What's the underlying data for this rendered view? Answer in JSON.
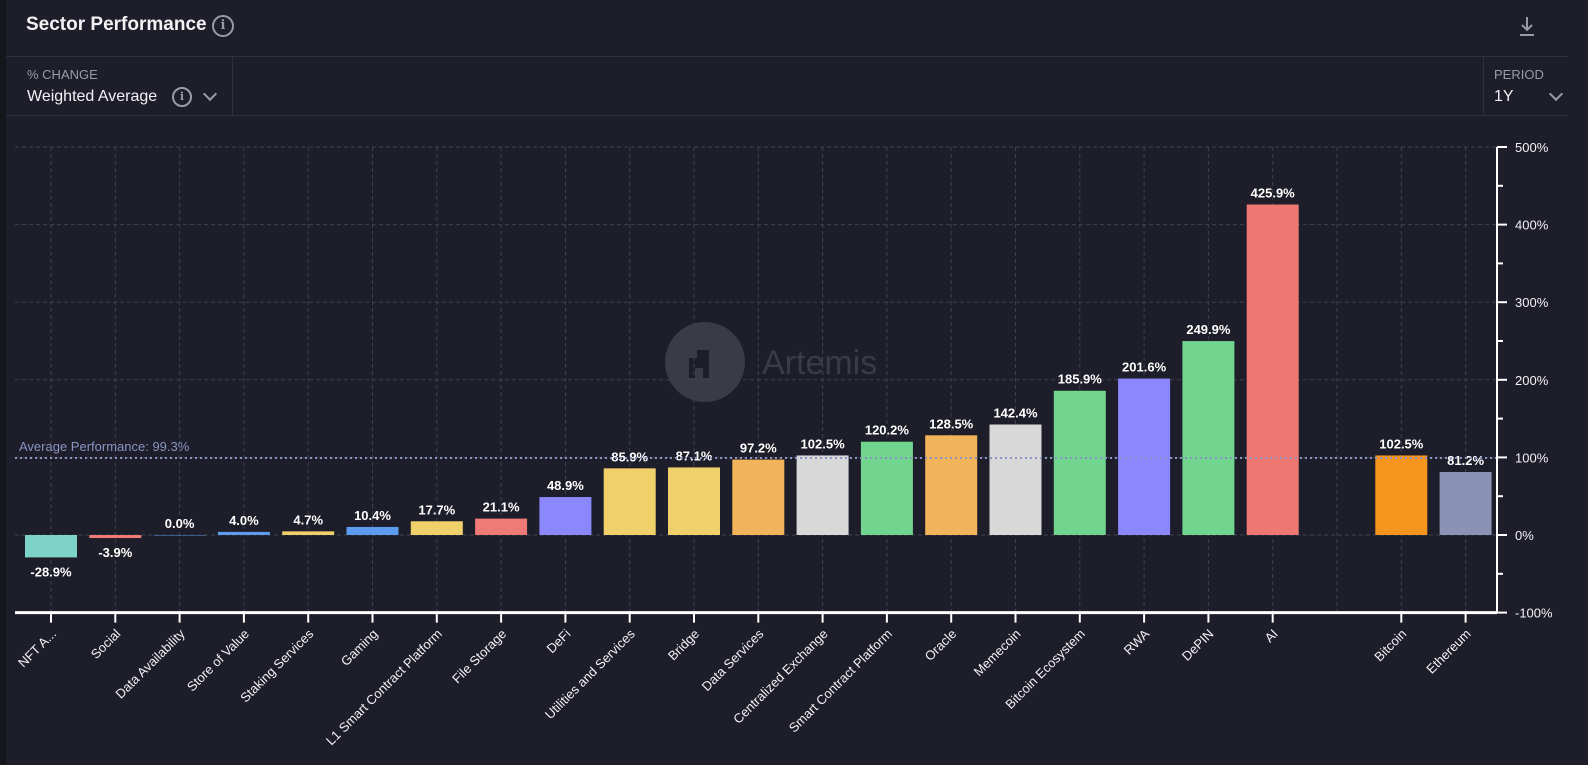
{
  "header": {
    "title": "Sector Performance",
    "info_icon": "info-icon",
    "download_icon": "download-icon"
  },
  "controls": {
    "change": {
      "label": "% CHANGE",
      "value": "Weighted Average"
    },
    "period": {
      "label": "PERIOD",
      "value": "1Y"
    }
  },
  "watermark": "Artemis",
  "chart_data": {
    "type": "bar",
    "title": "",
    "xlabel": "",
    "ylabel": "",
    "ylim": [
      -100,
      500
    ],
    "yticks": [
      "500%",
      "400%",
      "300%",
      "200%",
      "100%",
      "0%",
      "-100%"
    ],
    "ytick_values": [
      500,
      400,
      300,
      200,
      100,
      0,
      -100
    ],
    "grid": true,
    "average_line": {
      "label": "Average Performance: 99.3%",
      "value": 99.3,
      "color": "#8a93c4"
    },
    "categories": [
      "NFT A...",
      "Social",
      "Data Availability",
      "Store of Value",
      "Staking Services",
      "Gaming",
      "L1 Smart Contract Platform",
      "File Storage",
      "DeFi",
      "Utilities and Services",
      "Bridge",
      "Data Services",
      "Centralized Exchange",
      "Smart Contract Platform",
      "Oracle",
      "Memecoin",
      "Bitcoin Ecosystem",
      "RWA",
      "DePIN",
      "AI",
      "",
      "Bitcoin",
      "Ethereum"
    ],
    "values": [
      -28.9,
      -3.9,
      0.0,
      4.0,
      4.7,
      10.4,
      17.7,
      21.1,
      48.9,
      85.9,
      87.1,
      97.2,
      102.5,
      120.2,
      128.5,
      142.4,
      185.9,
      201.6,
      249.9,
      425.9,
      null,
      102.5,
      81.2
    ],
    "labels": [
      "-28.9%",
      "-3.9%",
      "0.0%",
      "4.0%",
      "4.7%",
      "10.4%",
      "17.7%",
      "21.1%",
      "48.9%",
      "85.9%",
      "87.1%",
      "97.2%",
      "102.5%",
      "120.2%",
      "128.5%",
      "142.4%",
      "185.9%",
      "201.6%",
      "249.9%",
      "425.9%",
      "",
      "102.5%",
      "81.2%"
    ],
    "colors": [
      "#7dd3c8",
      "#f07a75",
      "#5b9cf0",
      "#5b9cf0",
      "#f0d06a",
      "#5b9cf0",
      "#f0d06a",
      "#f07a75",
      "#8b87ff",
      "#f0d06a",
      "#f0d06a",
      "#f2b45a",
      "#d8d8d8",
      "#72d58f",
      "#f2b45a",
      "#d8d8d8",
      "#72d58f",
      "#8b87ff",
      "#72d58f",
      "#f07872",
      "",
      "#f7941d",
      "#8a93b4"
    ]
  }
}
